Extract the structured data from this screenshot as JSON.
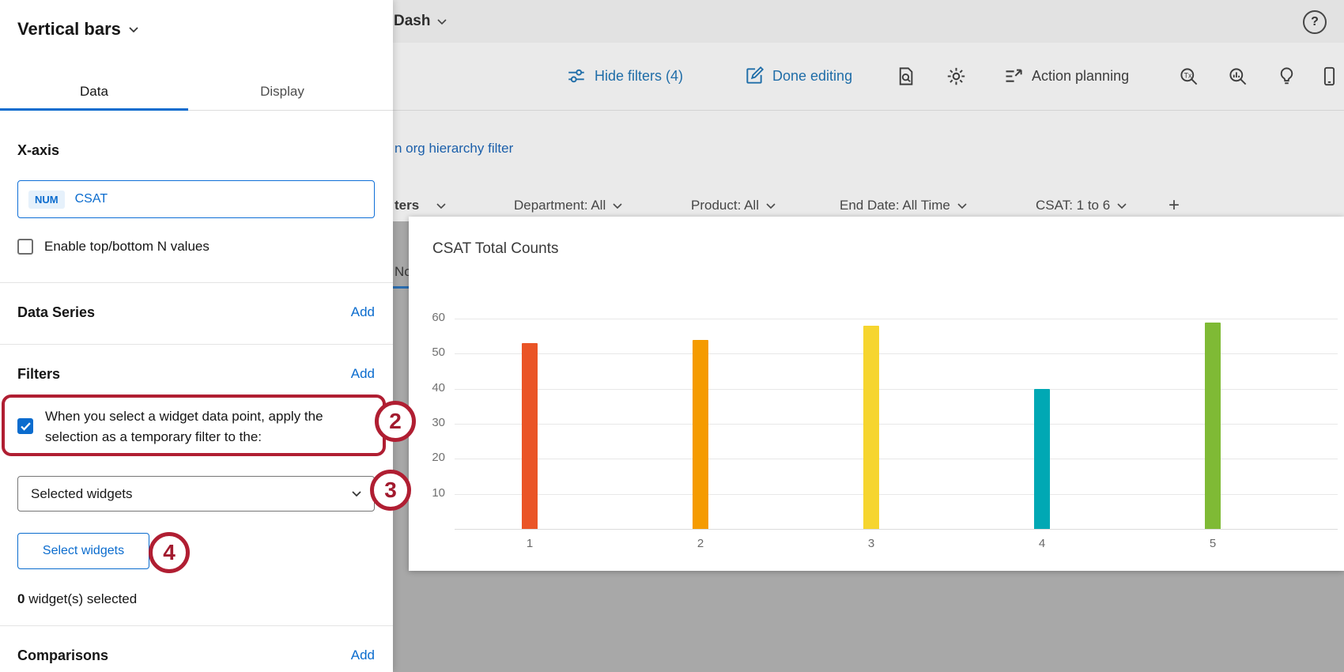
{
  "header": {
    "dashboard_title": "Dash",
    "help_label": "?"
  },
  "toolbar": {
    "hide_filters": "Hide filters (4)",
    "done_editing": "Done editing",
    "action_planning": "Action planning"
  },
  "subheader": {
    "org_hierarchy_link": "n org hierarchy filter",
    "page_tab_fragment": "No"
  },
  "filter_bar": {
    "truncated_label": "ters",
    "filters": [
      {
        "label": "Department: All"
      },
      {
        "label": "Product: All"
      },
      {
        "label": "End Date: All Time"
      },
      {
        "label": "CSAT: 1 to 6"
      }
    ],
    "add_icon": "+"
  },
  "panel": {
    "title": "Vertical bars",
    "tabs": [
      {
        "label": "Data"
      },
      {
        "label": "Display"
      }
    ],
    "xaxis": {
      "heading": "X-axis",
      "field_type": "NUM",
      "field_value": "CSAT",
      "enable_label": "Enable top/bottom N values",
      "enable_checked": false
    },
    "data_series": {
      "heading": "Data Series",
      "add": "Add"
    },
    "filters": {
      "heading": "Filters",
      "add": "Add",
      "apply_label": "When you select a widget data point, apply the selection as a temporary filter to the:",
      "apply_checked": true,
      "dropdown_value": "Selected widgets",
      "select_button": "Select widgets",
      "count": "0",
      "count_suffix": " widget(s) selected"
    },
    "comparisons": {
      "heading": "Comparisons",
      "add": "Add"
    }
  },
  "annotations": {
    "step2": "2",
    "step3": "3",
    "step4": "4"
  },
  "chart_data": {
    "type": "bar",
    "title": "CSAT Total Counts",
    "categories": [
      "1",
      "2",
      "3",
      "4",
      "5"
    ],
    "values": [
      53,
      54,
      58,
      40,
      59
    ],
    "bar_colors": [
      "#EA5426",
      "#F59B00",
      "#F6D52F",
      "#00A8B4",
      "#7FBA35"
    ],
    "yticks": [
      10,
      20,
      30,
      40,
      50,
      60
    ],
    "ylim": [
      0,
      65
    ],
    "grid": true,
    "legend": false,
    "xlabel": "",
    "ylabel": ""
  }
}
